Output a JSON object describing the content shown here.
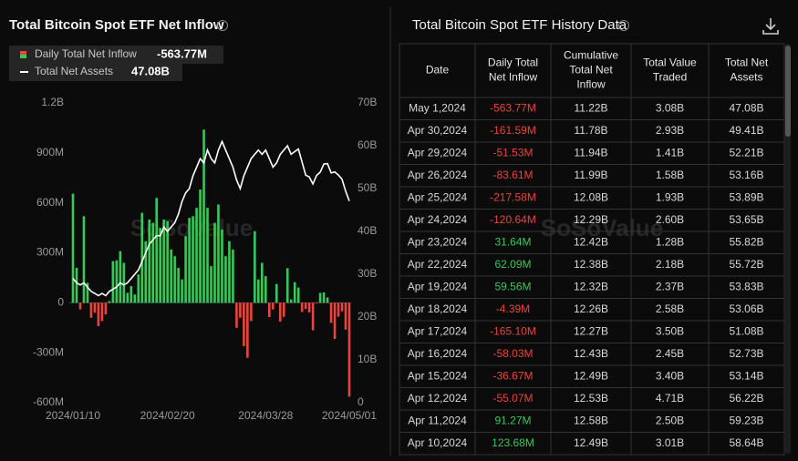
{
  "chart_data": {
    "type": "bar_line",
    "title": "Total Bitcoin Spot ETF Net Inflow",
    "watermark": "SoSoValue",
    "categories": [
      "2024/01/10",
      null,
      null,
      null,
      null,
      null,
      null,
      null,
      null,
      null,
      null,
      null,
      null,
      null,
      null,
      null,
      null,
      null,
      null,
      null,
      null,
      null,
      null,
      null,
      null,
      null,
      "2024/02/20",
      null,
      null,
      null,
      null,
      null,
      null,
      null,
      null,
      null,
      null,
      null,
      null,
      null,
      null,
      null,
      null,
      null,
      null,
      null,
      null,
      null,
      null,
      null,
      null,
      null,
      null,
      "2024/03/28",
      null,
      null,
      null,
      null,
      null,
      null,
      null,
      null,
      null,
      null,
      null,
      null,
      null,
      null,
      null,
      null,
      null,
      null,
      null,
      null,
      null,
      null,
      "2024/05/01"
    ],
    "series": [
      {
        "name": "Daily Total Net Inflow",
        "latest_label": "-563.77M",
        "color_positive": "#3cc65a",
        "color_negative": "#e8453c",
        "values": [
          655,
          210,
          -40,
          520,
          120,
          -90,
          -60,
          -140,
          -110,
          -70,
          10,
          250,
          255,
          310,
          240,
          60,
          100,
          50,
          170,
          540,
          370,
          500,
          480,
          630,
          450,
          500,
          490,
          320,
          280,
          210,
          140,
          400,
          510,
          520,
          570,
          680,
          1040,
          570,
          220,
          480,
          590,
          440,
          280,
          370,
          320,
          -150,
          -90,
          -260,
          -330,
          -110,
          430,
          140,
          240,
          160,
          -86,
          -40,
          113,
          -113,
          -84,
          208,
          20,
          123.68,
          91.27,
          -55.07,
          -36.67,
          -58.03,
          -165.1,
          -4.39,
          59.56,
          62.09,
          31.64,
          -120.64,
          -217.58,
          -83.61,
          -51.53,
          -161.59,
          -563.77
        ]
      },
      {
        "name": "Total Net Assets",
        "latest_label": "47.08B",
        "color": "#ffffff",
        "axis": "y2",
        "values": [
          29,
          28,
          27.5,
          28,
          27,
          26,
          25.5,
          25,
          25.5,
          25,
          26,
          26.5,
          27,
          28,
          27.5,
          28,
          29,
          30,
          31,
          33,
          35,
          37,
          38,
          39,
          39,
          41,
          40,
          41,
          42,
          44,
          47,
          49,
          50,
          53,
          55,
          57,
          56,
          59,
          57,
          56,
          59,
          61,
          59,
          57,
          55,
          52,
          50,
          53,
          55,
          57,
          58,
          59,
          58,
          59,
          57,
          55,
          56,
          58,
          59,
          60,
          58,
          58.64,
          59.23,
          56.22,
          53.14,
          52.73,
          51.08,
          53.06,
          53.83,
          55.72,
          55.82,
          53.65,
          53.89,
          53.16,
          52.21,
          49.41,
          47.08
        ]
      }
    ],
    "ylim": [
      -600,
      1200
    ],
    "yticks": [
      {
        "value": -600,
        "label": "-600M"
      },
      {
        "value": -300,
        "label": "-300M"
      },
      0,
      {
        "value": 300,
        "label": "300M"
      },
      {
        "value": 600,
        "label": "600M"
      },
      {
        "value": 900,
        "label": "900M"
      },
      {
        "value": 1200,
        "label": "1.2B"
      }
    ],
    "y2lim": [
      0,
      70
    ],
    "y2ticks": [
      0,
      {
        "value": 10,
        "label": "10B"
      },
      {
        "value": 20,
        "label": "20B"
      },
      {
        "value": 30,
        "label": "30B"
      },
      {
        "value": 40,
        "label": "40B"
      },
      {
        "value": 50,
        "label": "50B"
      },
      {
        "value": 60,
        "label": "60B"
      },
      {
        "value": 70,
        "label": "70B"
      }
    ]
  },
  "table": {
    "title": "Total Bitcoin Spot ETF History Data",
    "watermark": "SoSoValue",
    "columns": [
      "Date",
      "Daily Total Net Inflow",
      "Cumulative Total Net Inflow",
      "Total Value Traded",
      "Total Net Assets"
    ],
    "rows": [
      [
        "May 1,2024",
        "-563.77M",
        "11.22B",
        "3.08B",
        "47.08B"
      ],
      [
        "Apr 30,2024",
        "-161.59M",
        "11.78B",
        "2.93B",
        "49.41B"
      ],
      [
        "Apr 29,2024",
        "-51.53M",
        "11.94B",
        "1.41B",
        "52.21B"
      ],
      [
        "Apr 26,2024",
        "-83.61M",
        "11.99B",
        "1.58B",
        "53.16B"
      ],
      [
        "Apr 25,2024",
        "-217.58M",
        "12.08B",
        "1.93B",
        "53.89B"
      ],
      [
        "Apr 24,2024",
        "-120.64M",
        "12.29B",
        "2.60B",
        "53.65B"
      ],
      [
        "Apr 23,2024",
        "31.64M",
        "12.42B",
        "1.28B",
        "55.82B"
      ],
      [
        "Apr 22,2024",
        "62.09M",
        "12.38B",
        "2.18B",
        "55.72B"
      ],
      [
        "Apr 19,2024",
        "59.56M",
        "12.32B",
        "2.37B",
        "53.83B"
      ],
      [
        "Apr 18,2024",
        "-4.39M",
        "12.26B",
        "2.58B",
        "53.06B"
      ],
      [
        "Apr 17,2024",
        "-165.10M",
        "12.27B",
        "3.50B",
        "51.08B"
      ],
      [
        "Apr 16,2024",
        "-58.03M",
        "12.43B",
        "2.45B",
        "52.73B"
      ],
      [
        "Apr 15,2024",
        "-36.67M",
        "12.49B",
        "3.40B",
        "53.14B"
      ],
      [
        "Apr 12,2024",
        "-55.07M",
        "12.53B",
        "4.71B",
        "56.22B"
      ],
      [
        "Apr 11,2024",
        "91.27M",
        "12.58B",
        "2.50B",
        "59.23B"
      ],
      [
        "Apr 10,2024",
        "123.68M",
        "12.49B",
        "3.01B",
        "58.64B"
      ]
    ]
  }
}
